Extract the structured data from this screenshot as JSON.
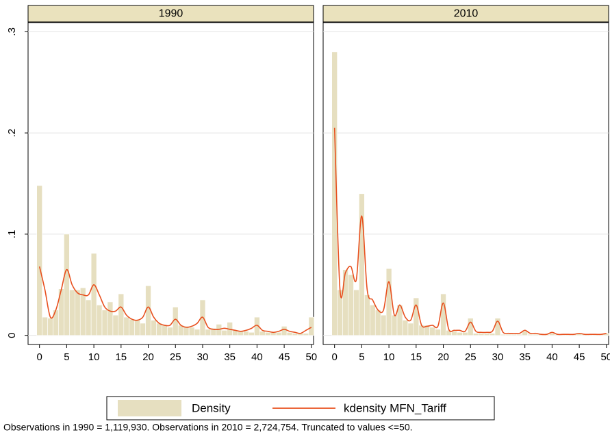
{
  "chart_data": [
    {
      "type": "histogram",
      "title": "1990",
      "color": "#e6dfc0",
      "bins": [
        -0.5,
        0.5,
        1.5,
        2.5,
        3.5,
        4.5,
        5.5,
        6.5,
        7.5,
        8.5,
        9.5,
        10.5,
        11.5,
        12.5,
        13.5,
        14.5,
        15.5,
        16.5,
        17.5,
        18.5,
        19.5,
        20.5,
        21.5,
        22.5,
        23.5,
        24.5,
        25.5,
        26.5,
        27.5,
        28.5,
        29.5,
        30.5,
        31.5,
        32.5,
        33.5,
        34.5,
        35.5,
        36.5,
        37.5,
        38.5,
        39.5,
        40.5,
        41.5,
        42.5,
        43.5,
        44.5,
        45.5,
        46.5,
        47.5,
        48.5,
        49.5,
        50.5
      ],
      "values": [
        0.148,
        0.018,
        0.017,
        0.025,
        0.046,
        0.1,
        0.045,
        0.045,
        0.047,
        0.035,
        0.081,
        0.03,
        0.025,
        0.033,
        0.02,
        0.041,
        0.018,
        0.016,
        0.015,
        0.012,
        0.049,
        0.015,
        0.012,
        0.01,
        0.008,
        0.028,
        0.01,
        0.009,
        0.008,
        0.006,
        0.035,
        0.006,
        0.007,
        0.011,
        0.005,
        0.013,
        0.005,
        0.004,
        0.004,
        0.003,
        0.018,
        0.004,
        0.003,
        0.003,
        0.003,
        0.009,
        0.003,
        0.002,
        0.002,
        0.002,
        0.018
      ],
      "line": {
        "color": "#e8501e",
        "x": [
          0,
          1,
          2,
          3,
          4,
          5,
          6,
          7,
          8,
          9,
          10,
          11,
          12,
          13,
          14,
          15,
          16,
          17,
          18,
          19,
          20,
          21,
          22,
          23,
          24,
          25,
          26,
          27,
          28,
          29,
          30,
          31,
          32,
          33,
          34,
          35,
          36,
          37,
          38,
          39,
          40,
          41,
          42,
          43,
          44,
          45,
          46,
          47,
          48,
          49,
          50
        ],
        "values": [
          0.068,
          0.045,
          0.018,
          0.025,
          0.045,
          0.065,
          0.05,
          0.042,
          0.04,
          0.04,
          0.05,
          0.04,
          0.028,
          0.024,
          0.024,
          0.028,
          0.02,
          0.016,
          0.015,
          0.018,
          0.028,
          0.018,
          0.012,
          0.01,
          0.01,
          0.016,
          0.01,
          0.008,
          0.009,
          0.012,
          0.018,
          0.008,
          0.006,
          0.006,
          0.007,
          0.006,
          0.005,
          0.004,
          0.005,
          0.007,
          0.01,
          0.005,
          0.004,
          0.003,
          0.004,
          0.006,
          0.004,
          0.003,
          0.002,
          0.005,
          0.008
        ]
      },
      "xlim": [
        -2.1,
        50.4
      ],
      "xticks": [
        0,
        5,
        10,
        15,
        20,
        25,
        30,
        35,
        40,
        45,
        50
      ],
      "ylim": [
        -0.009,
        0.309
      ],
      "yticks": [
        0,
        {
          "value": 0.1,
          "label": ".1"
        },
        {
          "value": 0.2,
          "label": ".2"
        },
        {
          "value": 0.3,
          "label": ".3"
        }
      ],
      "grid": true
    },
    {
      "type": "histogram",
      "title": "2010",
      "color": "#e6dfc0",
      "bins": [
        -0.5,
        0.5,
        1.5,
        2.5,
        3.5,
        4.5,
        5.5,
        6.5,
        7.5,
        8.5,
        9.5,
        10.5,
        11.5,
        12.5,
        13.5,
        14.5,
        15.5,
        16.5,
        17.5,
        18.5,
        19.5,
        20.5,
        21.5,
        22.5,
        23.5,
        24.5,
        25.5,
        26.5,
        27.5,
        28.5,
        29.5,
        30.5,
        31.5,
        32.5,
        33.5,
        34.5,
        35.5,
        36.5,
        37.5,
        38.5,
        39.5,
        40.5,
        41.5,
        42.5,
        43.5,
        44.5,
        45.5,
        46.5,
        47.5,
        48.5,
        49.5,
        50.5
      ],
      "values": [
        0.28,
        0.045,
        0.065,
        0.06,
        0.045,
        0.14,
        0.04,
        0.03,
        0.025,
        0.02,
        0.066,
        0.02,
        0.03,
        0.015,
        0.012,
        0.037,
        0.01,
        0.01,
        0.008,
        0.006,
        0.041,
        0.005,
        0.004,
        0.003,
        0.003,
        0.017,
        0.002,
        0.002,
        0.002,
        0.002,
        0.017,
        0.001,
        0.001,
        0.001,
        0.001,
        0.004,
        0.001,
        0.001,
        0.001,
        0.001,
        0.002,
        0.001,
        0.001,
        0.001,
        0.001,
        0.002,
        0.001,
        0.001,
        0.001,
        0.001,
        0.002
      ],
      "line": {
        "color": "#e8501e",
        "x": [
          0,
          1,
          2,
          3,
          4,
          5,
          6,
          7,
          8,
          9,
          10,
          11,
          12,
          13,
          14,
          15,
          16,
          17,
          18,
          19,
          20,
          21,
          22,
          23,
          24,
          25,
          26,
          27,
          28,
          29,
          30,
          31,
          32,
          33,
          34,
          35,
          36,
          37,
          38,
          39,
          40,
          41,
          42,
          43,
          44,
          45,
          46,
          47,
          48,
          49,
          50
        ],
        "values": [
          0.205,
          0.045,
          0.062,
          0.068,
          0.055,
          0.118,
          0.045,
          0.035,
          0.025,
          0.025,
          0.053,
          0.02,
          0.03,
          0.018,
          0.015,
          0.03,
          0.01,
          0.009,
          0.01,
          0.009,
          0.032,
          0.006,
          0.005,
          0.005,
          0.004,
          0.013,
          0.004,
          0.003,
          0.003,
          0.004,
          0.014,
          0.003,
          0.002,
          0.002,
          0.002,
          0.005,
          0.002,
          0.002,
          0.001,
          0.001,
          0.003,
          0.001,
          0.001,
          0.001,
          0.001,
          0.002,
          0.001,
          0.001,
          0.001,
          0.001,
          0.002
        ]
      },
      "xlim": [
        -2.1,
        50.4
      ],
      "xticks": [
        0,
        5,
        10,
        15,
        20,
        25,
        30,
        35,
        40,
        45,
        50
      ],
      "ylim": [
        -0.009,
        0.309
      ],
      "yticks": [
        0,
        {
          "value": 0.1,
          "label": ".1"
        },
        {
          "value": 0.2,
          "label": ".2"
        },
        {
          "value": 0.3,
          "label": ".3"
        }
      ],
      "grid": true
    }
  ],
  "legend": [
    "Density",
    "kdensity MFN_Tariff"
  ],
  "note": "Observations in 1990 = 1,119,930. Observations in 2010 = 2,724,754. Truncated to values <=50."
}
